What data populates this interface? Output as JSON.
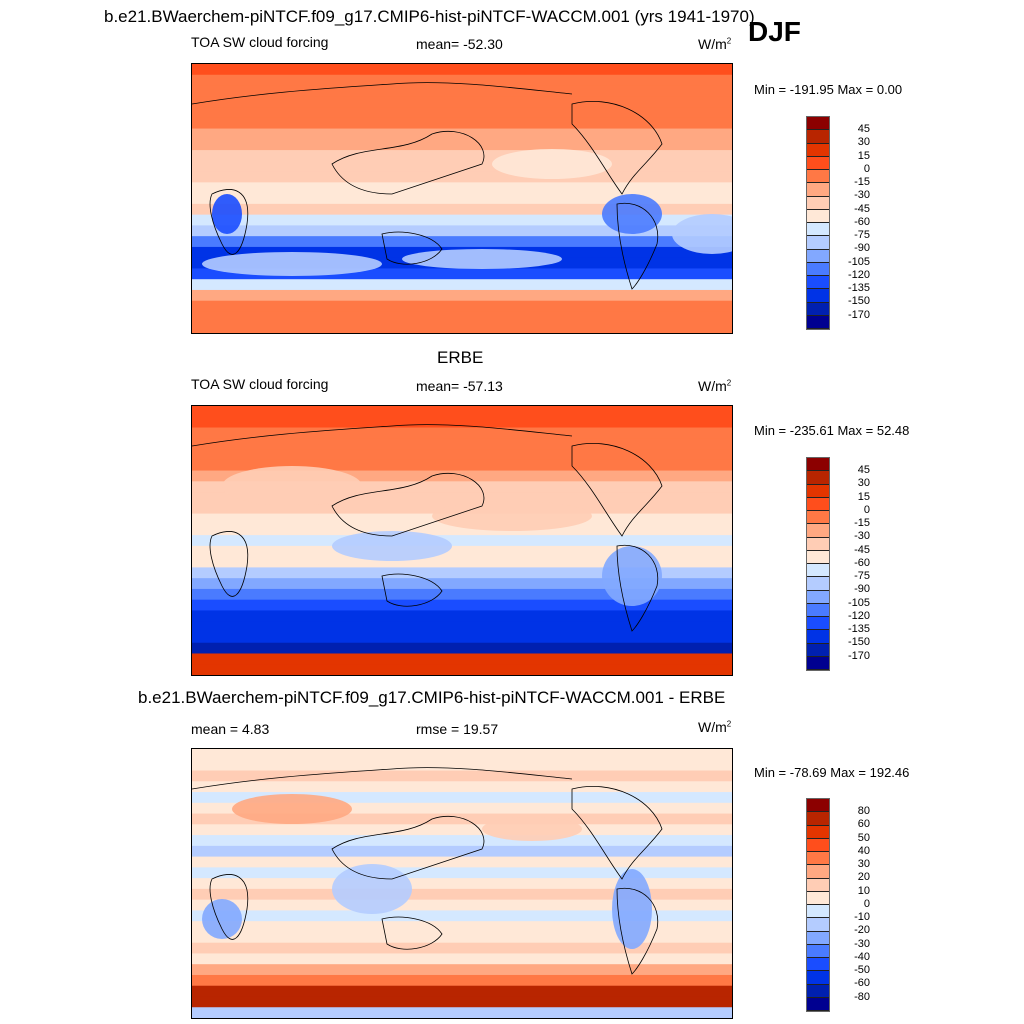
{
  "title": "b.e21.BWaerchem-piNTCF.f09_g17.CMIP6-hist-piNTCF-WACCM.001 (yrs 1941-1970)",
  "season": "DJF",
  "panels": [
    {
      "heading": "",
      "variable": "TOA SW cloud forcing",
      "stat": "mean= -52.30",
      "stat2": "",
      "units": "W/m",
      "units_sup": "2",
      "minmax": "Min = -191.95 Max =   0.00",
      "levels": [
        "45",
        "30",
        "15",
        "0",
        "-15",
        "-30",
        "-45",
        "-60",
        "-75",
        "-90",
        "-105",
        "-120",
        "-135",
        "-150",
        "-170"
      ]
    },
    {
      "heading": "ERBE",
      "variable": "TOA SW cloud forcing",
      "stat": "mean= -57.13",
      "stat2": "",
      "units": "W/m",
      "units_sup": "2",
      "minmax": "Min = -235.61 Max =  52.48",
      "levels": [
        "45",
        "30",
        "15",
        "0",
        "-15",
        "-30",
        "-45",
        "-60",
        "-75",
        "-90",
        "-105",
        "-120",
        "-135",
        "-150",
        "-170"
      ]
    },
    {
      "heading": "b.e21.BWaerchem-piNTCF.f09_g17.CMIP6-hist-piNTCF-WACCM.001 - ERBE",
      "variable": "mean =   4.83",
      "stat": "rmse =  19.57",
      "stat2": "",
      "units": "W/m",
      "units_sup": "2",
      "minmax": "Min = -78.69 Max = 192.46",
      "levels": [
        "80",
        "60",
        "50",
        "40",
        "30",
        "20",
        "10",
        "0",
        "-10",
        "-20",
        "-30",
        "-40",
        "-50",
        "-60",
        "-80"
      ]
    }
  ],
  "colors": [
    "#8c0000",
    "#b82500",
    "#e33500",
    "#ff4e1c",
    "#ff7845",
    "#ffa882",
    "#ffcdb5",
    "#ffe8d7",
    "#d4e8ff",
    "#b4ccff",
    "#82a8ff",
    "#4a7bff",
    "#1a4dff",
    "#0033e6",
    "#0020b0",
    "#000090"
  ]
}
